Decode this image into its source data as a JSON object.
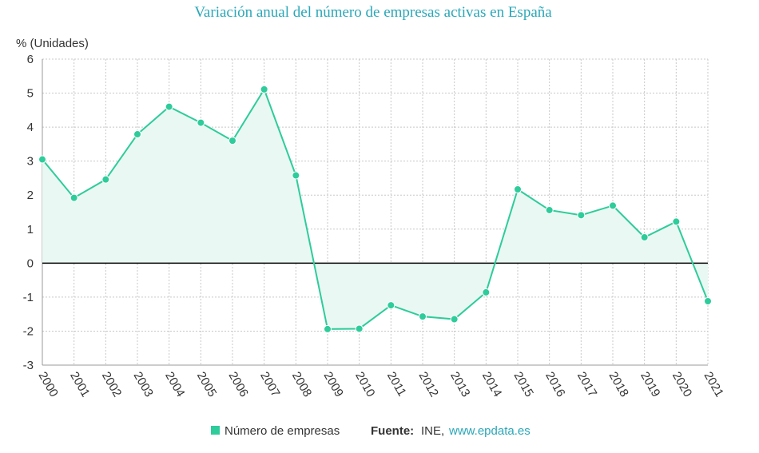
{
  "chart_data": {
    "type": "line",
    "title": "Variación anual del número de empresas activas en España",
    "ylabel": "% (Unidades)",
    "xlabel": "",
    "ylim": [
      -3,
      6
    ],
    "yticks": [
      6,
      5,
      4,
      3,
      2,
      1,
      0,
      -1,
      -2,
      -3
    ],
    "grid": true,
    "area_fill": true,
    "categories": [
      "2000",
      "2001",
      "2002",
      "2003",
      "2004",
      "2005",
      "2006",
      "2007",
      "2008",
      "2009",
      "2010",
      "2011",
      "2012",
      "2013",
      "2014",
      "2015",
      "2016",
      "2017",
      "2018",
      "2019",
      "2020",
      "2021"
    ],
    "series": [
      {
        "name": "Número de empresas",
        "color": "#2ecc9a",
        "values": [
          3.05,
          1.92,
          2.46,
          3.79,
          4.6,
          4.13,
          3.6,
          5.11,
          2.58,
          -1.94,
          -1.93,
          -1.24,
          -1.57,
          -1.65,
          -0.86,
          2.17,
          1.56,
          1.41,
          1.69,
          0.76,
          1.22,
          -1.12
        ]
      }
    ],
    "legend": {
      "placement": "bottom",
      "series_label": "Número de empresas",
      "source_label": "Fuente:",
      "source_text": "INE,",
      "source_link": "www.epdata.es"
    }
  },
  "colors": {
    "title": "#2aa7b8",
    "line": "#2ecc9a",
    "fill": "#e9f8f3",
    "grid": "#c8c8c8",
    "zero_line": "#000000",
    "link": "#2aa7b8"
  }
}
